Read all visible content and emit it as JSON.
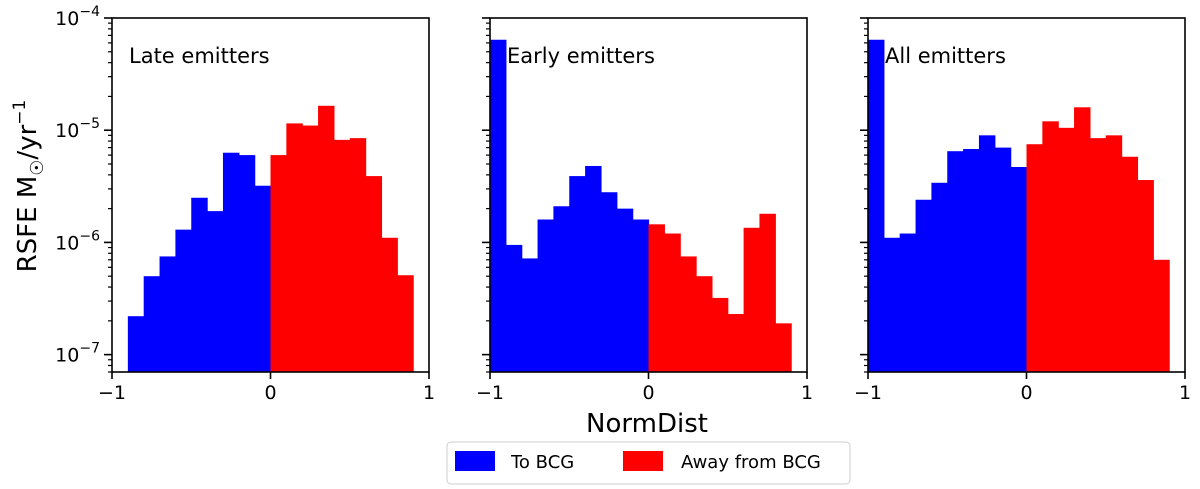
{
  "chart_data": {
    "type": "bar",
    "subtype": "histogram",
    "xlabel": "NormDist",
    "ylabel_main": "RSFE M",
    "ylabel_sun": "☉",
    "ylabel_unit": "/yr",
    "ylabel_exp": "−1",
    "yscale": "log",
    "ylim": [
      7e-08,
      0.0001
    ],
    "xlim": [
      -1,
      1
    ],
    "x_ticks": [
      {
        "value": -1,
        "label": "−1"
      },
      {
        "value": 0,
        "label": "0"
      },
      {
        "value": 1,
        "label": "1"
      }
    ],
    "y_ticks": [
      {
        "value": 0.0001,
        "base": "10",
        "exp": "−4"
      },
      {
        "value": 1e-05,
        "base": "10",
        "exp": "−5"
      },
      {
        "value": 1e-06,
        "base": "10",
        "exp": "−6"
      },
      {
        "value": 1e-07,
        "base": "10",
        "exp": "−7"
      }
    ],
    "bin_width": 0.1,
    "legend": [
      {
        "name": "To BCG",
        "color": "#0000ff"
      },
      {
        "name": "Away from BCG",
        "color": "#ff0000"
      }
    ],
    "panels": [
      {
        "label": "Late emitters",
        "series": [
          {
            "name": "To BCG",
            "color": "#0000ff",
            "bin_starts": [
              -0.9,
              -0.8,
              -0.7,
              -0.6,
              -0.5,
              -0.4,
              -0.3,
              -0.2,
              -0.1
            ],
            "values": [
              2.2e-07,
              5e-07,
              7.5e-07,
              1.3e-06,
              2.5e-06,
              1.9e-06,
              6.3e-06,
              6e-06,
              3.2e-06
            ]
          },
          {
            "name": "Away from BCG",
            "color": "#ff0000",
            "bin_starts": [
              0.0,
              0.1,
              0.2,
              0.3,
              0.4,
              0.5,
              0.6,
              0.7,
              0.8
            ],
            "values": [
              6e-06,
              1.15e-05,
              1.1e-05,
              1.65e-05,
              8.2e-06,
              8.5e-06,
              3.9e-06,
              1.1e-06,
              5.1e-07
            ]
          }
        ]
      },
      {
        "label": "Early emitters",
        "series": [
          {
            "name": "To BCG",
            "color": "#0000ff",
            "bin_starts": [
              -1.0,
              -0.9,
              -0.8,
              -0.7,
              -0.6,
              -0.5,
              -0.4,
              -0.3,
              -0.2,
              -0.1
            ],
            "values": [
              6.4e-05,
              9.5e-07,
              7.2e-07,
              1.6e-06,
              2.1e-06,
              3.9e-06,
              4.8e-06,
              2.8e-06,
              2e-06,
              1.6e-06
            ]
          },
          {
            "name": "Away from BCG",
            "color": "#ff0000",
            "bin_starts": [
              0.0,
              0.1,
              0.2,
              0.3,
              0.4,
              0.5,
              0.6,
              0.7,
              0.8
            ],
            "values": [
              1.45e-06,
              1.2e-06,
              7.5e-07,
              5e-07,
              3.2e-07,
              2.3e-07,
              1.35e-06,
              1.8e-06,
              1.9e-07
            ]
          }
        ]
      },
      {
        "label": "All emitters",
        "series": [
          {
            "name": "To BCG",
            "color": "#0000ff",
            "bin_starts": [
              -1.0,
              -0.9,
              -0.8,
              -0.7,
              -0.6,
              -0.5,
              -0.4,
              -0.3,
              -0.2,
              -0.1
            ],
            "values": [
              6.4e-05,
              1.1e-06,
              1.2e-06,
              2.4e-06,
              3.4e-06,
              6.5e-06,
              6.8e-06,
              9e-06,
              7e-06,
              4.7e-06
            ]
          },
          {
            "name": "Away from BCG",
            "color": "#ff0000",
            "bin_starts": [
              0.0,
              0.1,
              0.2,
              0.3,
              0.4,
              0.5,
              0.6,
              0.7,
              0.8
            ],
            "values": [
              7.5e-06,
              1.2e-05,
              1.05e-05,
              1.6e-05,
              8.5e-06,
              9e-06,
              5.8e-06,
              3.6e-06,
              7e-07
            ]
          }
        ]
      }
    ]
  }
}
